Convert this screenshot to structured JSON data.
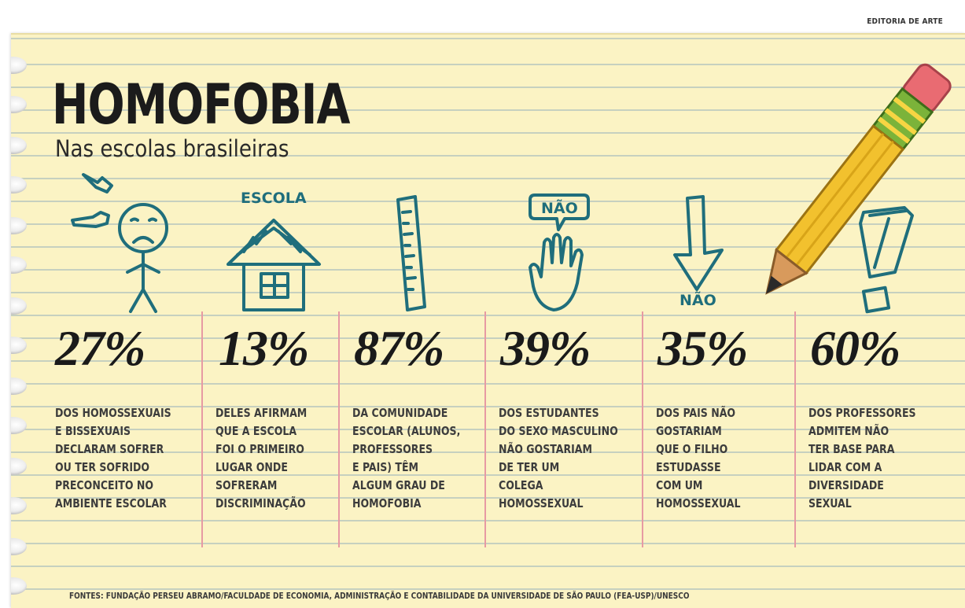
{
  "credit": "EDITORIA DE ARTE",
  "title": "HOMOFOBIA",
  "subtitle": "Nas escolas brasileiras",
  "icons": {
    "escola_label": "ESCOLA",
    "nao_bubble": "NÃO",
    "nao_arrow": "NÃO"
  },
  "stats": [
    {
      "value": "27%",
      "description": "DOS HOMOSSEXUAIS\nE BISSEXUAIS\nDECLARAM SOFRER\nOU TER SOFRIDO\nPRECONCEITO NO\nAMBIENTE ESCOLAR",
      "icon": "sad-stick-figure-icon"
    },
    {
      "value": "13%",
      "description": "DELES AFIRMAM\nQUE A ESCOLA\nFOI O PRIMEIRO\nLUGAR ONDE\nSOFRERAM\nDISCRIMINAÇÃO",
      "icon": "school-house-icon"
    },
    {
      "value": "87%",
      "description": "DA COMUNIDADE\nESCOLAR (ALUNOS,\nPROFESSORES\nE PAIS) TÊM\nALGUM GRAU DE\nHOMOFOBIA",
      "icon": "ruler-icon"
    },
    {
      "value": "39%",
      "description": "DOS ESTUDANTES\nDO SEXO MASCULINO\nNÃO GOSTARIAM\nDE TER UM\nCOLEGA\nHOMOSSEXUAL",
      "icon": "raised-hand-icon"
    },
    {
      "value": "35%",
      "description": "DOS PAIS NÃO\nGOSTARIAM\nQUE O FILHO\nESTUDASSE\nCOM UM\nHOMOSSEXUAL",
      "icon": "down-arrow-icon"
    },
    {
      "value": "60%",
      "description": "DOS PROFESSORES\nADMITEM NÃO\nTER BASE PARA\nLIDAR COM A\nDIVERSIDADE\nSEXUAL",
      "icon": "exclamation-icon"
    }
  ],
  "sources": "FONTES: FUNDAÇÃO PERSEU ABRAMO/FACULDADE DE ECONOMIA, ADMINISTRAÇÃO E CONTABILIDADE DA UNIVERSIDADE DE SÃO PAULO (FEA-USP)/UNESCO",
  "colors": {
    "paper": "#fbf3c4",
    "ink": "#1f6e7c",
    "divider": "#e79aa3",
    "pencil": "#f2c12e"
  }
}
